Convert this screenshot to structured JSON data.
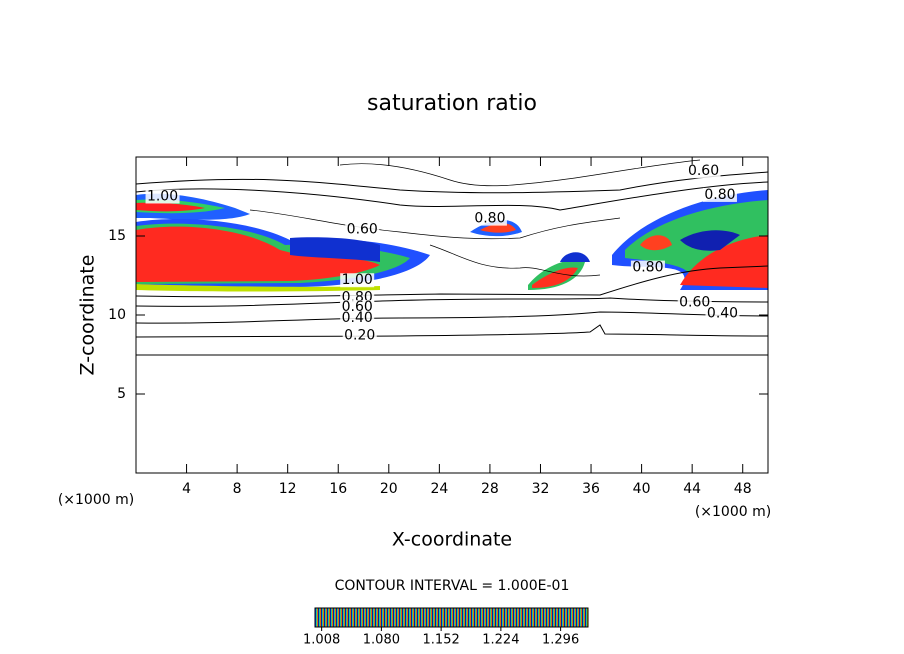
{
  "chart_data": {
    "type": "contour",
    "title": "saturation ratio",
    "x_label": "X-coordinate",
    "y_label": "Z-coordinate",
    "x_unit": "(×1000 m)",
    "x_unit_right": "(×1000 m)",
    "contour_interval": "CONTOUR INTERVAL = 1.000E-01",
    "xlim": [
      0,
      50
    ],
    "ylim": [
      0,
      20
    ],
    "xticks": [
      4,
      8,
      12,
      16,
      20,
      24,
      28,
      32,
      36,
      40,
      44,
      48
    ],
    "yticks": [
      5,
      10,
      15
    ],
    "clim": [
      1.0,
      1.329
    ],
    "cticks": [
      {
        "value": 1.008,
        "label": "1.008"
      },
      {
        "value": 1.08,
        "label": "1.080"
      },
      {
        "value": 1.152,
        "label": "1.152"
      },
      {
        "value": 1.224,
        "label": "1.224"
      },
      {
        "value": 1.296,
        "label": "1.296"
      }
    ],
    "contour_labels": [
      {
        "x": 2.1,
        "y": 17.5,
        "value": 1.0,
        "label": "1.00"
      },
      {
        "x": 17.9,
        "y": 15.4,
        "value": 0.6,
        "label": "0.60"
      },
      {
        "x": 28.0,
        "y": 16.1,
        "value": 0.8,
        "label": "0.80"
      },
      {
        "x": 44.9,
        "y": 19.1,
        "value": 0.6,
        "label": "0.60"
      },
      {
        "x": 46.2,
        "y": 17.6,
        "value": 0.8,
        "label": "0.80"
      },
      {
        "x": 17.5,
        "y": 12.2,
        "value": 1.0,
        "label": "1.00"
      },
      {
        "x": 17.5,
        "y": 11.1,
        "value": 0.8,
        "label": "0.80"
      },
      {
        "x": 17.5,
        "y": 10.5,
        "value": 0.6,
        "label": "0.60"
      },
      {
        "x": 17.5,
        "y": 9.8,
        "value": 0.4,
        "label": "0.40"
      },
      {
        "x": 17.7,
        "y": 8.7,
        "value": 0.2,
        "label": "0.20"
      },
      {
        "x": 40.5,
        "y": 13.0,
        "value": 0.8,
        "label": "0.80"
      },
      {
        "x": 44.2,
        "y": 10.8,
        "value": 0.6,
        "label": "0.60"
      },
      {
        "x": 46.4,
        "y": 10.1,
        "value": 0.4,
        "label": "0.40"
      }
    ]
  }
}
